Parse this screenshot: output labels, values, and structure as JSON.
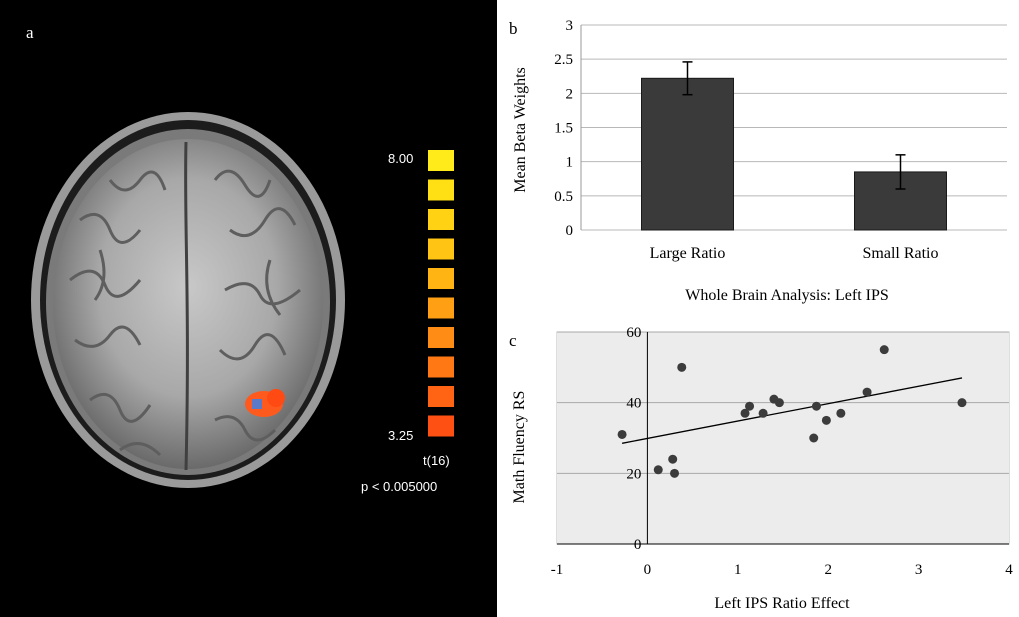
{
  "panel_a": {
    "label": "a",
    "colorbar": {
      "max_label": "8.00",
      "min_label": "3.25",
      "stat_label": "t(16)",
      "p_label": "p < 0.005000",
      "colors": [
        "#ffeb1a",
        "#ffe014",
        "#ffd214",
        "#ffc414",
        "#ffb414",
        "#ffa014",
        "#ff8c14",
        "#ff7814",
        "#ff6414",
        "#ff5014"
      ]
    }
  },
  "panel_b": {
    "label": "b"
  },
  "panel_c": {
    "label": "c"
  },
  "chart_data": [
    {
      "type": "bar",
      "categories": [
        "Large Ratio",
        "Small Ratio"
      ],
      "values": [
        2.22,
        0.85
      ],
      "error": [
        0.24,
        0.25
      ],
      "xlabel": "Whole Brain Analysis: Left IPS",
      "ylabel": "Mean Beta Weights",
      "ylim": [
        0,
        3
      ],
      "yticks": [
        "0",
        "0.5",
        "1",
        "1.5",
        "2",
        "2.5",
        "3"
      ],
      "grid": true,
      "bar_color": "#3a3a3a"
    },
    {
      "type": "scatter",
      "x": [
        -0.28,
        0.12,
        0.28,
        0.3,
        0.38,
        1.08,
        1.13,
        1.28,
        1.4,
        1.46,
        1.84,
        1.87,
        1.98,
        2.14,
        2.43,
        2.62,
        3.48
      ],
      "y": [
        31,
        21,
        24,
        20,
        50,
        37,
        39,
        37,
        41,
        40,
        30,
        39,
        35,
        37,
        43,
        55,
        40
      ],
      "trendline": {
        "x": [
          -0.28,
          3.48
        ],
        "y": [
          28.5,
          47
        ]
      },
      "xlabel": "Left IPS Ratio Effect",
      "ylabel": "Math Fluency RS",
      "xlim": [
        -1,
        4
      ],
      "ylim": [
        0,
        60
      ],
      "xticks": [
        "-1",
        "0",
        "1",
        "2",
        "3",
        "4"
      ],
      "yticks": [
        "0",
        "20",
        "40",
        "60"
      ],
      "grid": true
    }
  ]
}
